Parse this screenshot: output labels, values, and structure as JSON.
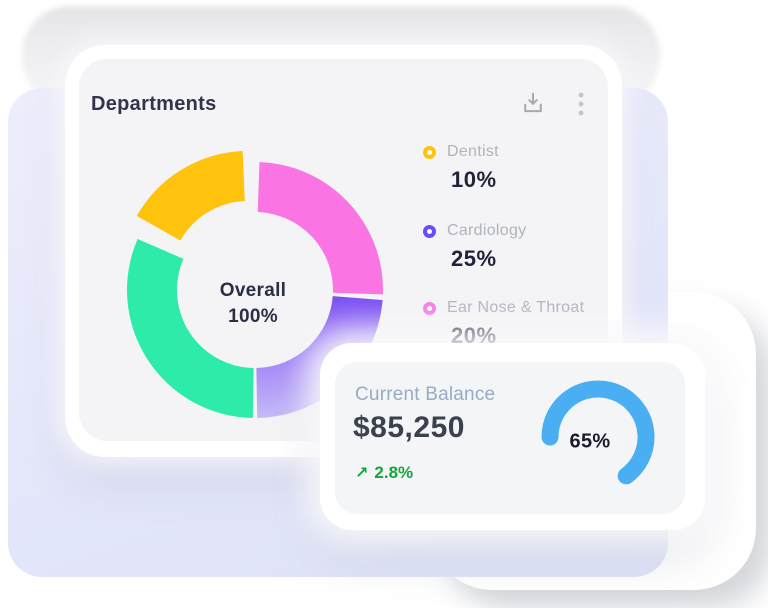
{
  "departments_card": {
    "title": "Departments",
    "toolbar": {
      "download_icon": "download",
      "menu_icon": "kebab-menu"
    },
    "donut": {
      "center_line1": "Overall",
      "center_line2": "100%",
      "outer_radius": 128,
      "inner_radius": 78,
      "segments": [
        {
          "id": "ear-nose-throat",
          "color": "#FA74E3",
          "start": 2,
          "end": 92
        },
        {
          "id": "cardiology",
          "color": "#7A4EF3",
          "color_end": "#C6B9F9",
          "start": 94.5,
          "end": 179
        },
        {
          "id": "remainder",
          "color": "#2DEBA8",
          "start": 181,
          "end": 293.5
        },
        {
          "id": "dentist",
          "color": "#FFC20D",
          "start": 299.5,
          "end": 357.5,
          "explode": 13
        }
      ]
    },
    "legend": [
      {
        "label": "Dentist",
        "value": "10%",
        "color": "#FFC20D"
      },
      {
        "label": "Cardiology",
        "value": "25%",
        "color": "#6B4BF5"
      },
      {
        "label": "Ear Nose & Throat",
        "value": "20%",
        "color": "#F97AE4"
      }
    ]
  },
  "balance_card": {
    "title": "Current Balance",
    "amount": "$85,250",
    "change_arrow": "↗",
    "change": "2.8%",
    "change_color": "#17A43B",
    "gauge": {
      "percent": 65,
      "label": "65%",
      "color": "#4AAFF2",
      "start_angle": 270
    }
  },
  "chart_data": [
    {
      "type": "pie",
      "subtype": "donut",
      "title": "Departments",
      "center_label": "Overall 100%",
      "legend_position": "right",
      "slices": [
        {
          "label": "Dentist",
          "value_pct": 10,
          "color": "#FFC20D",
          "exploded": true
        },
        {
          "label": "Cardiology",
          "value_pct": 25,
          "color": "#6B4BF5"
        },
        {
          "label": "Ear Nose & Throat",
          "value_pct": 20,
          "color": "#F97AE4"
        },
        {
          "label": "",
          "value_pct": 45,
          "color": "#2DEBA8"
        }
      ]
    },
    {
      "type": "pie",
      "subtype": "gauge",
      "title": "Current Balance",
      "value_pct": 65,
      "color": "#4AAFF2",
      "annotations": [
        "$85,250",
        "↗ 2.8%",
        "65%"
      ]
    }
  ]
}
